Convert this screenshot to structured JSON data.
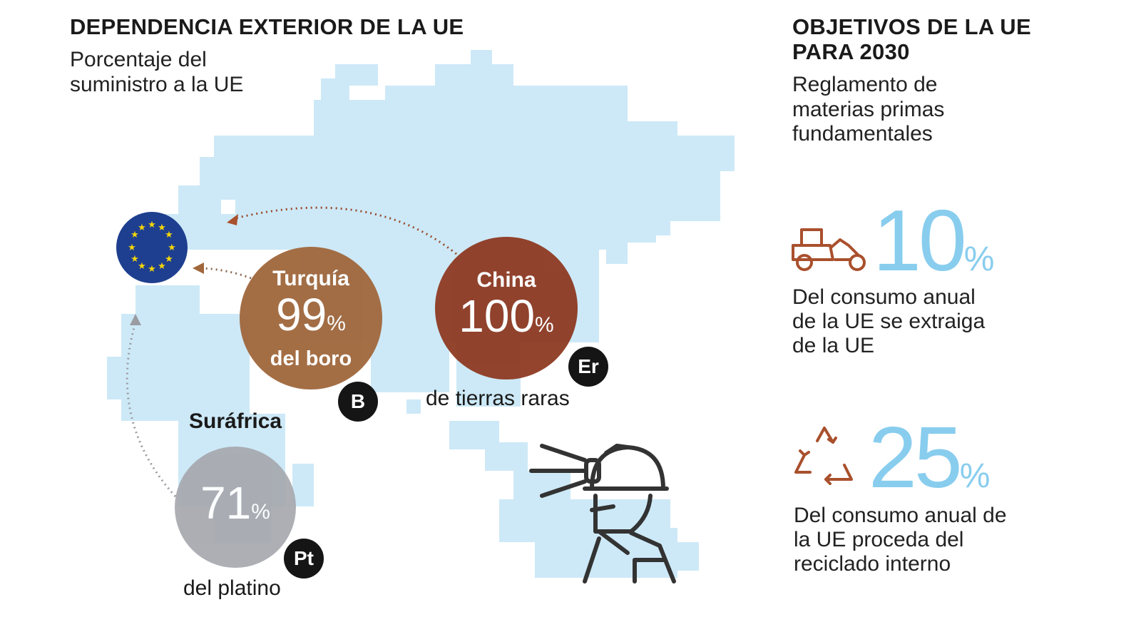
{
  "left": {
    "title": "DEPENDENCIA EXTERIOR DE LA UE",
    "subtitle_line1": "Porcentaje del",
    "subtitle_line2": "suministro a la UE"
  },
  "right": {
    "title_line1": "OBJETIVOS DE LA UE",
    "title_line2": "PARA 2030",
    "subtitle_line1": "Reglamento de",
    "subtitle_line2": "materias primas",
    "subtitle_line3": "fundamentales"
  },
  "sources": [
    {
      "country": "China",
      "value": "100",
      "unit": "%",
      "material": "de tierras raras",
      "symbol": "Er",
      "color": "#8e3a22"
    },
    {
      "country": "Turquía",
      "value": "99",
      "unit": "%",
      "material": "del boro",
      "symbol": "B",
      "color": "#a0673c"
    },
    {
      "country": "Surǻfrica",
      "value": "71",
      "unit": "%",
      "material": "del platino",
      "symbol": "Pt",
      "color": "#a6a8ae"
    }
  ],
  "targets": [
    {
      "value": "10",
      "unit": "%",
      "desc_line1": "Del consumo anual",
      "desc_line2": "de la UE se extraiga",
      "desc_line3": "de la UE",
      "icon": "mining-vehicle-icon"
    },
    {
      "value": "25",
      "unit": "%",
      "desc_line1": "Del consumo anual de",
      "desc_line2": "la UE proceda del",
      "desc_line3": "reciclado interno",
      "icon": "recycle-icon"
    }
  ],
  "colors": {
    "map": "#cde9f7",
    "accent": "#88cdee",
    "icon": "#a9502d",
    "eu_flag": "#1e3f8f",
    "eu_stars": "#f5d60a"
  }
}
